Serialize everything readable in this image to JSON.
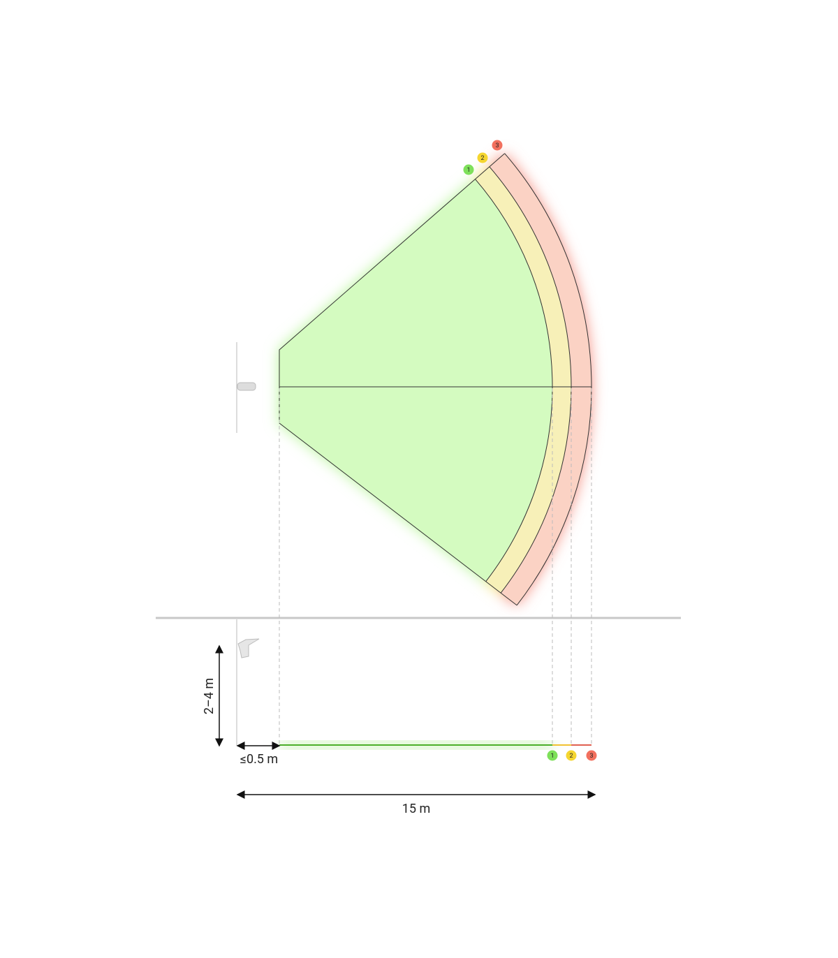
{
  "zones": [
    {
      "label": "1",
      "color": "#7ee05a"
    },
    {
      "label": "2",
      "color": "#f5d630"
    },
    {
      "label": "3",
      "color": "#f2705e"
    }
  ],
  "dimensions": {
    "height": "2–4 m",
    "offset": "≤0.5 m",
    "range": "15 m"
  }
}
